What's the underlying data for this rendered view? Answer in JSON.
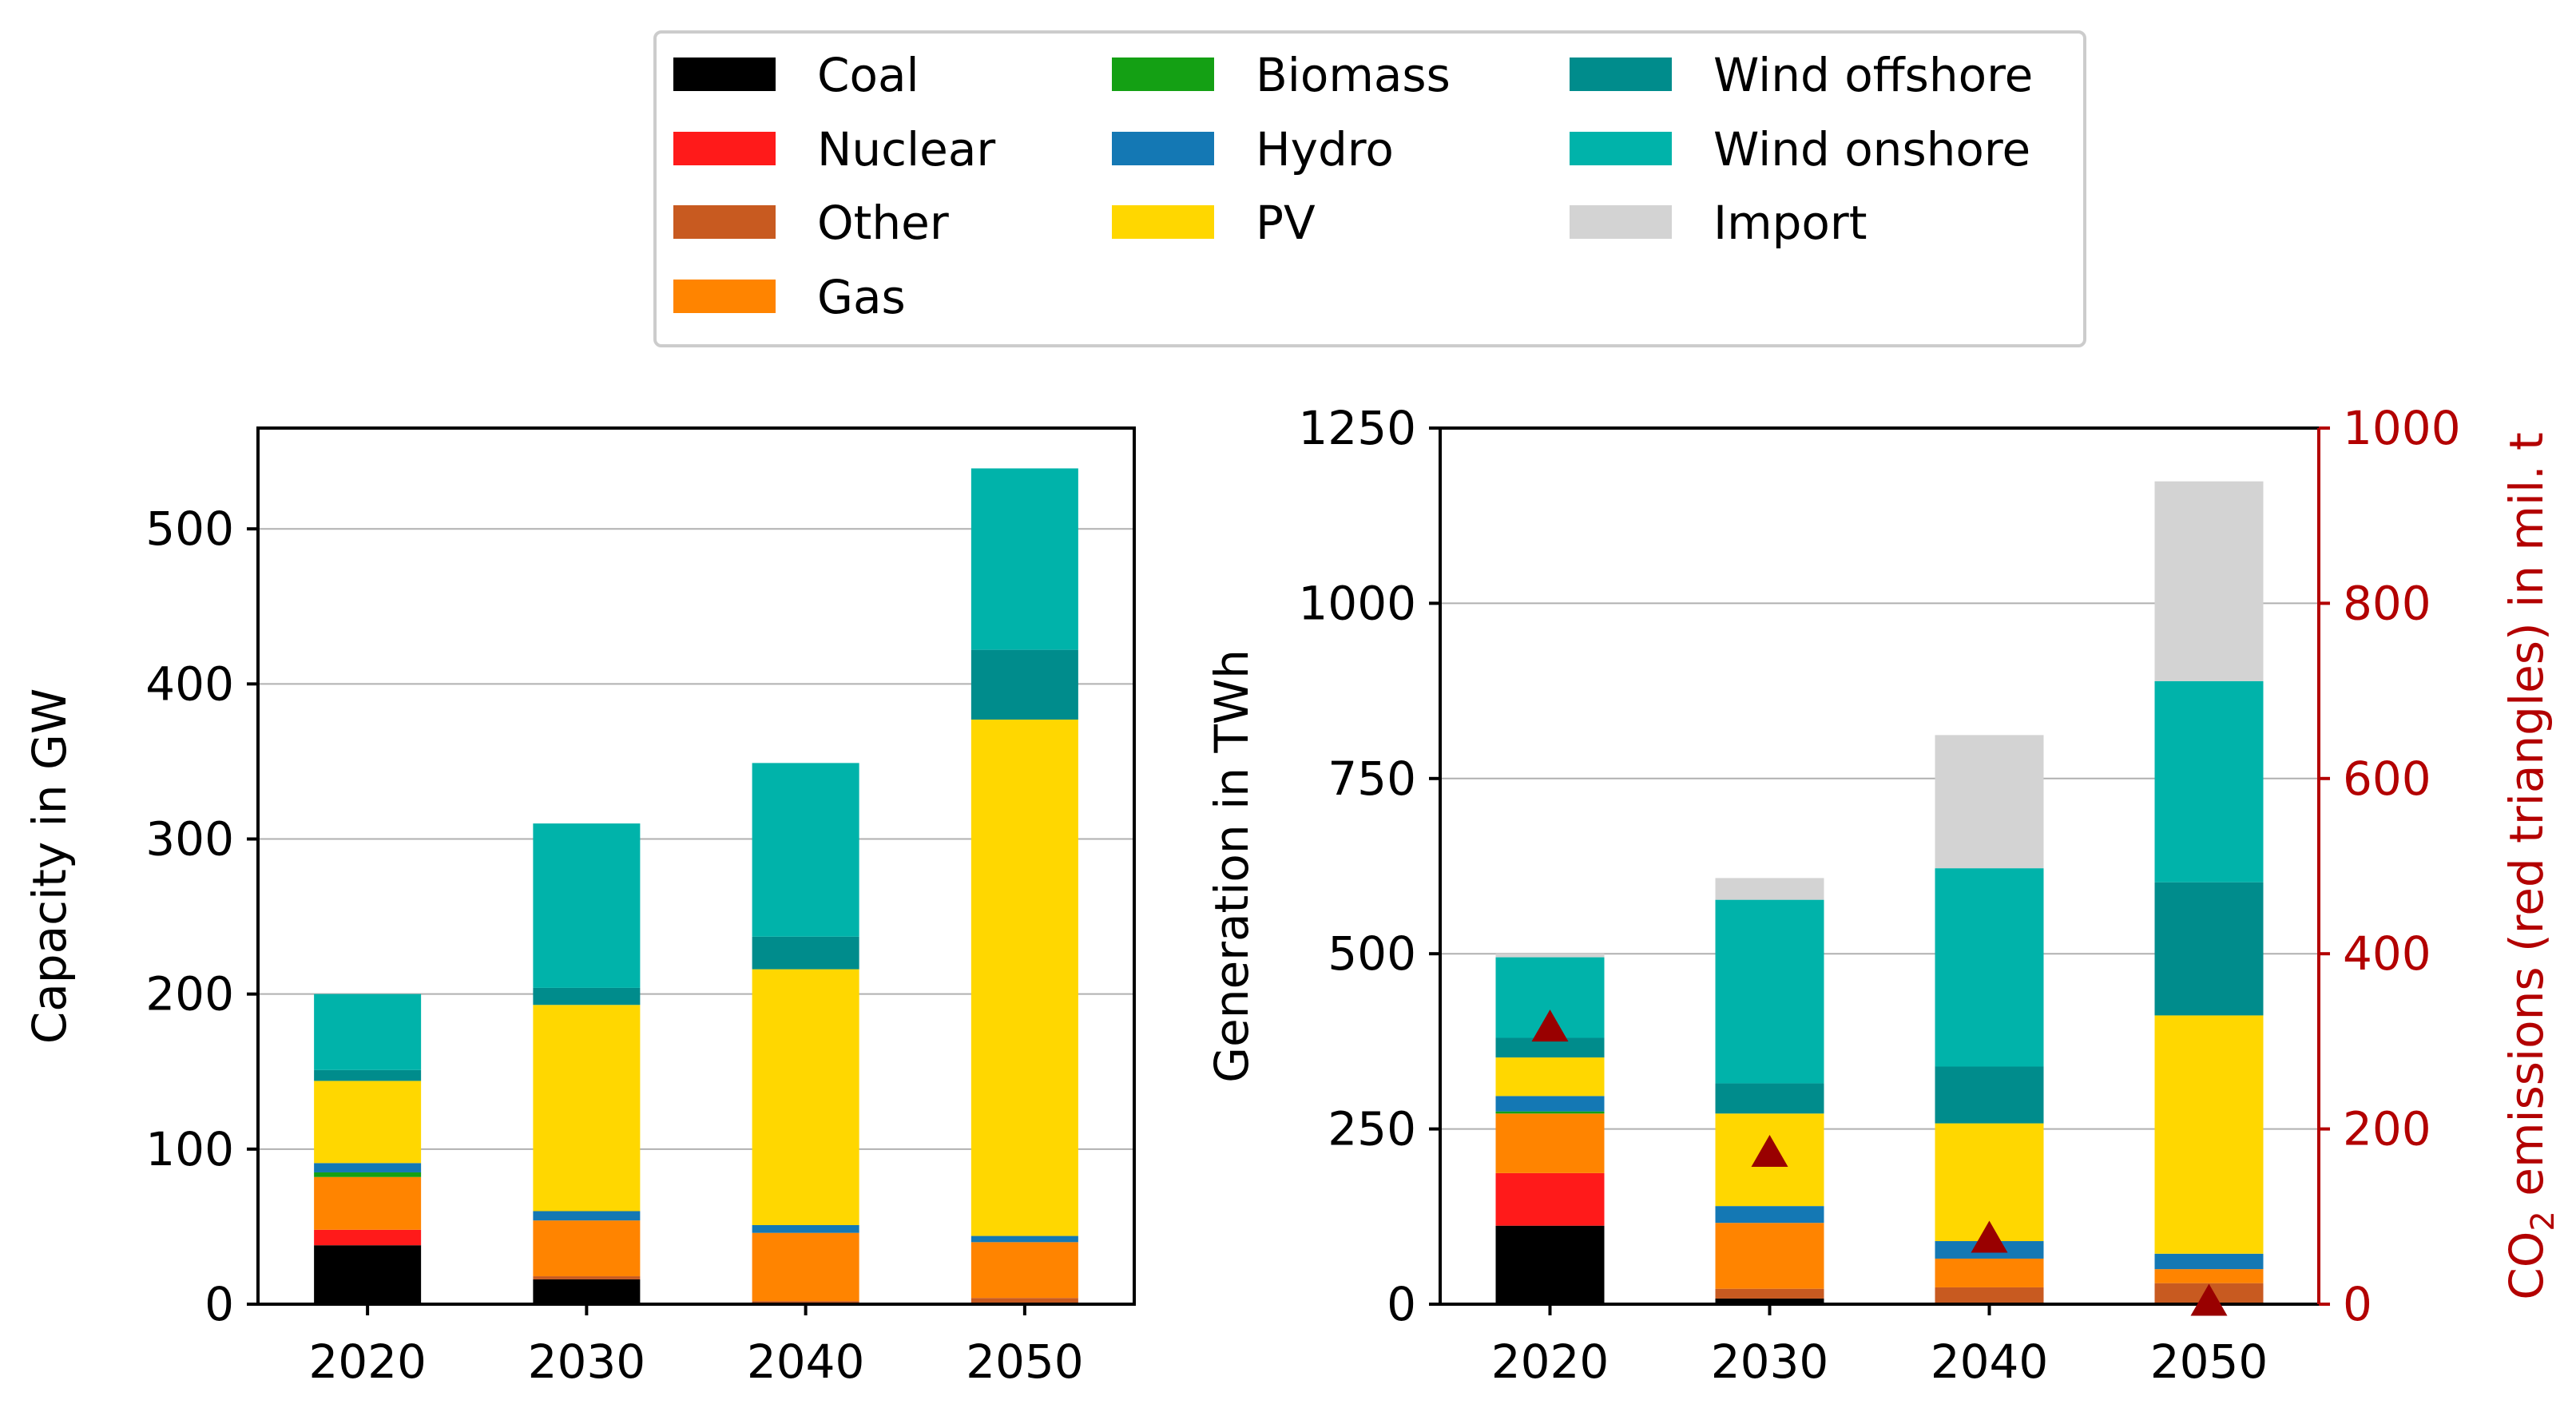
{
  "legend": {
    "items": [
      {
        "key": "coal",
        "label": "Coal",
        "color": "#000000"
      },
      {
        "key": "nuclear",
        "label": "Nuclear",
        "color": "#ff1a1a"
      },
      {
        "key": "other",
        "label": "Other",
        "color": "#c85a20"
      },
      {
        "key": "gas",
        "label": "Gas",
        "color": "#ff8400"
      },
      {
        "key": "biomass",
        "label": "Biomass",
        "color": "#14a014"
      },
      {
        "key": "hydro",
        "label": "Hydro",
        "color": "#1478b4"
      },
      {
        "key": "pv",
        "label": "PV",
        "color": "#ffd700"
      },
      {
        "key": "wind_offshore",
        "label": "Wind offshore",
        "color": "#008c8c"
      },
      {
        "key": "wind_onshore",
        "label": "Wind onshore",
        "color": "#00b3aa"
      },
      {
        "key": "import",
        "label": "Import",
        "color": "#d3d3d3"
      }
    ]
  },
  "chart_data": [
    {
      "type": "bar",
      "stacked": true,
      "title": "",
      "xlabel": "",
      "ylabel": "Capacity in GW",
      "ylim": [
        0,
        565
      ],
      "yticks": [
        0,
        100,
        200,
        300,
        400,
        500
      ],
      "categories": [
        "2020",
        "2030",
        "2040",
        "2050"
      ],
      "grid": "horizontal",
      "series": [
        {
          "key": "coal",
          "name": "Coal",
          "values": [
            38,
            16,
            0,
            0
          ]
        },
        {
          "key": "nuclear",
          "name": "Nuclear",
          "values": [
            10,
            0,
            0,
            0
          ]
        },
        {
          "key": "other",
          "name": "Other",
          "values": [
            0,
            2,
            2,
            4
          ]
        },
        {
          "key": "gas",
          "name": "Gas",
          "values": [
            34,
            36,
            44,
            36
          ]
        },
        {
          "key": "biomass",
          "name": "Biomass",
          "values": [
            3,
            0,
            0,
            0
          ]
        },
        {
          "key": "hydro",
          "name": "Hydro",
          "values": [
            6,
            6,
            5,
            4
          ]
        },
        {
          "key": "pv",
          "name": "PV",
          "values": [
            53,
            133,
            165,
            333
          ]
        },
        {
          "key": "wind_offshore",
          "name": "Wind offshore",
          "values": [
            7,
            11,
            21,
            45
          ]
        },
        {
          "key": "wind_onshore",
          "name": "Wind onshore",
          "values": [
            49,
            106,
            112,
            117
          ]
        }
      ]
    },
    {
      "type": "bar",
      "stacked": true,
      "title": "",
      "xlabel": "",
      "ylabel": "Generation in TWh",
      "ylim": [
        0,
        1250
      ],
      "yticks": [
        0,
        250,
        500,
        750,
        1000,
        1250
      ],
      "categories": [
        "2020",
        "2030",
        "2040",
        "2050"
      ],
      "grid": "horizontal",
      "series": [
        {
          "key": "coal",
          "name": "Coal",
          "values": [
            112,
            8,
            0,
            0
          ]
        },
        {
          "key": "nuclear",
          "name": "Nuclear",
          "values": [
            75,
            0,
            0,
            0
          ]
        },
        {
          "key": "other",
          "name": "Other",
          "values": [
            0,
            14,
            24,
            30
          ]
        },
        {
          "key": "gas",
          "name": "Gas",
          "values": [
            85,
            94,
            41,
            20
          ]
        },
        {
          "key": "biomass",
          "name": "Biomass",
          "values": [
            3,
            0,
            0,
            0
          ]
        },
        {
          "key": "hydro",
          "name": "Hydro",
          "values": [
            22,
            24,
            25,
            22
          ]
        },
        {
          "key": "pv",
          "name": "PV",
          "values": [
            55,
            132,
            168,
            340
          ]
        },
        {
          "key": "wind_offshore",
          "name": "Wind offshore",
          "values": [
            28,
            43,
            81,
            190
          ]
        },
        {
          "key": "wind_onshore",
          "name": "Wind onshore",
          "values": [
            115,
            262,
            283,
            287
          ]
        },
        {
          "key": "import",
          "name": "Import",
          "values": [
            5,
            31,
            190,
            285
          ]
        }
      ],
      "secondary_axis": {
        "label_prefix": "CO",
        "label_subscript": "2",
        "label_suffix": " emissions (red triangles) in mil. t",
        "ylim": [
          0,
          1000
        ],
        "yticks": [
          0,
          200,
          400,
          600,
          800,
          1000
        ],
        "color": "#b30000",
        "marker": "triangle",
        "marker_color": "#990000",
        "values": [
          318,
          175,
          77,
          5
        ]
      }
    }
  ]
}
